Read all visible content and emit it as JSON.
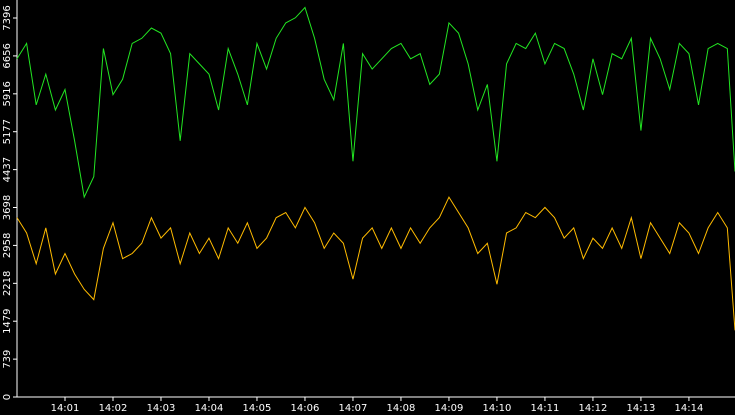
{
  "chart_data": {
    "type": "line",
    "x": [
      0,
      0.2,
      0.4,
      0.6,
      0.8,
      1.0,
      1.2,
      1.4,
      1.6,
      1.8,
      2.0,
      2.2,
      2.4,
      2.6,
      2.8,
      3.0,
      3.2,
      3.4,
      3.6,
      3.8,
      4.0,
      4.2,
      4.4,
      4.6,
      4.8,
      5.0,
      5.2,
      5.4,
      5.6,
      5.8,
      6.0,
      6.2,
      6.4,
      6.6,
      6.8,
      7.0,
      7.2,
      7.4,
      7.6,
      7.8,
      8.0,
      8.2,
      8.4,
      8.6,
      8.8,
      9.0,
      9.2,
      9.4,
      9.6,
      9.8,
      10.0,
      10.2,
      10.4,
      10.6,
      10.8,
      11.0,
      11.2,
      11.4,
      11.6,
      11.8,
      12.0,
      12.2,
      12.4,
      12.6,
      12.8,
      13.0,
      13.2,
      13.4,
      13.6,
      13.8,
      14.0,
      14.2,
      14.4,
      14.6,
      14.8,
      14.96
    ],
    "series": [
      {
        "color": "#22e622",
        "values": [
          6600,
          6900,
          5700,
          6300,
          5600,
          6000,
          5000,
          3900,
          4300,
          6800,
          5900,
          6200,
          6900,
          7000,
          7200,
          7100,
          6700,
          5000,
          6700,
          6500,
          6300,
          5600,
          6800,
          6300,
          5700,
          6900,
          6400,
          7000,
          7300,
          7400,
          7600,
          7000,
          6200,
          5800,
          6900,
          4600,
          6700,
          6400,
          6600,
          6800,
          6900,
          6600,
          6700,
          6100,
          6300,
          7300,
          7100,
          6500,
          5600,
          6100,
          4600,
          6500,
          6900,
          6800,
          7100,
          6500,
          6900,
          6800,
          6300,
          5600,
          6600,
          5900,
          6700,
          6600,
          7000,
          5200,
          7000,
          6600,
          6000,
          6900,
          6700,
          5700,
          6800,
          6900,
          6800,
          4400
        ]
      },
      {
        "color": "#ffbb00",
        "values": [
          3500,
          3200,
          2600,
          3300,
          2400,
          2800,
          2400,
          2100,
          1900,
          2900,
          3400,
          2700,
          2800,
          3000,
          3500,
          3100,
          3300,
          2600,
          3200,
          2800,
          3100,
          2700,
          3300,
          3000,
          3400,
          2900,
          3100,
          3500,
          3600,
          3300,
          3700,
          3400,
          2900,
          3200,
          3000,
          2300,
          3100,
          3300,
          2900,
          3300,
          2900,
          3300,
          3000,
          3300,
          3500,
          3900,
          3600,
          3300,
          2800,
          3000,
          2200,
          3200,
          3300,
          3600,
          3500,
          3700,
          3500,
          3100,
          3300,
          2700,
          3100,
          2900,
          3300,
          2900,
          3500,
          2700,
          3400,
          3100,
          2800,
          3400,
          3200,
          2800,
          3300,
          3600,
          3300,
          1300
        ]
      }
    ],
    "xlim": [
      0,
      14.96
    ],
    "xticks": [
      {
        "value": 1,
        "label": "14:01"
      },
      {
        "value": 2,
        "label": "14:02"
      },
      {
        "value": 3,
        "label": "14:03"
      },
      {
        "value": 4,
        "label": "14:04"
      },
      {
        "value": 5,
        "label": "14:05"
      },
      {
        "value": 6,
        "label": "14:06"
      },
      {
        "value": 7,
        "label": "14:07"
      },
      {
        "value": 8,
        "label": "14:08"
      },
      {
        "value": 9,
        "label": "14:09"
      },
      {
        "value": 10,
        "label": "14:10"
      },
      {
        "value": 11,
        "label": "14:11"
      },
      {
        "value": 12,
        "label": "14:12"
      },
      {
        "value": 13,
        "label": "14:13"
      },
      {
        "value": 14,
        "label": "14:14"
      }
    ],
    "ylim": [
      0,
      7747
    ],
    "yticks": [
      0,
      739,
      1479,
      2218,
      2958,
      3698,
      4437,
      5177,
      5916,
      6656,
      7396
    ],
    "grid": false
  }
}
